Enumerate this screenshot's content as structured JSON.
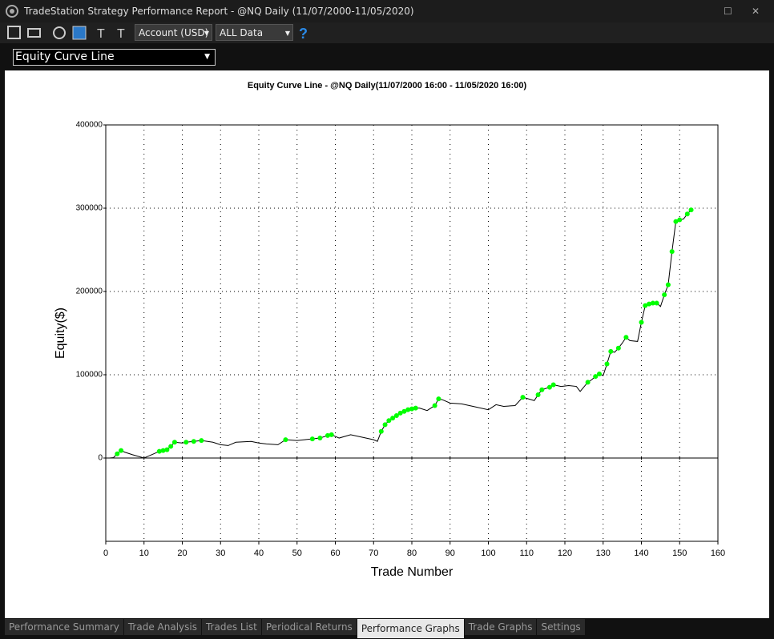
{
  "window": {
    "title": "TradeStation Strategy Performance Report - @NQ Daily (11/07/2000-11/05/2020)"
  },
  "toolbar": {
    "account": "Account (USD)",
    "range": "ALL Data"
  },
  "view_select": "Equity Curve Line",
  "chart_data": {
    "type": "line",
    "title": "Equity Curve Line - @NQ Daily(11/07/2000 16:00 - 11/05/2020 16:00)",
    "x_label": "Trade Number",
    "y_label": "Equity($)",
    "xlim": [
      0,
      160
    ],
    "xticks": [
      0,
      10,
      20,
      30,
      40,
      50,
      60,
      70,
      80,
      90,
      100,
      110,
      120,
      130,
      140,
      150,
      160
    ],
    "ylim": [
      -100000,
      400000
    ],
    "yticks": [
      0,
      100000,
      200000,
      300000,
      400000
    ],
    "grid": true,
    "series": [
      {
        "color": "#000000",
        "x": [
          1,
          2,
          3,
          4,
          5,
          7,
          10,
          11,
          14,
          15,
          16,
          17,
          18,
          20,
          21,
          23,
          25,
          28,
          30,
          32,
          34,
          38,
          40,
          42,
          45,
          47,
          50,
          52,
          54,
          56,
          58,
          59,
          61,
          64,
          67,
          70,
          71,
          72,
          73,
          74,
          75,
          76,
          77,
          78,
          79,
          80,
          81,
          82,
          84,
          86,
          87,
          88,
          90,
          93,
          96,
          100,
          102,
          104,
          107,
          109,
          112,
          113,
          114,
          116,
          117,
          119,
          121,
          123,
          124,
          126,
          127,
          128,
          129,
          130,
          131,
          132,
          133,
          134,
          135,
          136,
          137,
          139,
          140,
          141,
          142,
          143,
          144,
          145,
          146,
          147,
          148,
          149,
          150,
          151,
          152,
          153
        ],
        "values": [
          0,
          500,
          5000,
          9000,
          7000,
          4000,
          0,
          2000,
          8000,
          9000,
          10000,
          14000,
          19000,
          18000,
          19000,
          20000,
          21000,
          19000,
          16000,
          15000,
          19000,
          20000,
          18000,
          17000,
          16000,
          22000,
          21000,
          22000,
          23000,
          24000,
          27000,
          28000,
          24000,
          28000,
          25000,
          22000,
          20000,
          32000,
          40000,
          45000,
          48000,
          51000,
          54000,
          56000,
          58000,
          59000,
          60000,
          60000,
          57000,
          63000,
          71000,
          70000,
          66000,
          65000,
          62000,
          58000,
          64000,
          62000,
          63000,
          73000,
          69000,
          76000,
          82000,
          85000,
          88000,
          86000,
          87000,
          86000,
          80000,
          91000,
          94000,
          98000,
          101000,
          99000,
          113000,
          128000,
          127000,
          132000,
          138000,
          145000,
          141000,
          140000,
          163000,
          183000,
          185000,
          186000,
          186000,
          182000,
          196000,
          208000,
          248000,
          284000,
          286000,
          287000,
          293000,
          298000
        ]
      },
      {
        "color": "#00ff00",
        "marker": "circle",
        "x": [
          3,
          4,
          14,
          15,
          16,
          17,
          18,
          21,
          23,
          25,
          47,
          54,
          56,
          58,
          59,
          72,
          73,
          74,
          75,
          76,
          77,
          78,
          79,
          80,
          81,
          86,
          87,
          109,
          113,
          114,
          116,
          117,
          126,
          128,
          129,
          131,
          132,
          134,
          136,
          140,
          141,
          142,
          143,
          144,
          146,
          147,
          148,
          149,
          150,
          152,
          153
        ],
        "values": [
          5000,
          9000,
          8000,
          9000,
          10000,
          14000,
          19000,
          19000,
          20000,
          21000,
          22000,
          23000,
          24000,
          27000,
          28000,
          32000,
          40000,
          45000,
          48000,
          51000,
          54000,
          56000,
          58000,
          59000,
          60000,
          63000,
          71000,
          73000,
          76000,
          82000,
          85000,
          88000,
          91000,
          98000,
          101000,
          113000,
          128000,
          132000,
          145000,
          163000,
          183000,
          185000,
          186000,
          186000,
          196000,
          208000,
          248000,
          284000,
          286000,
          293000,
          298000
        ]
      }
    ]
  },
  "tabs": [
    "Performance Summary",
    "Trade Analysis",
    "Trades List",
    "Periodical Returns",
    "Performance Graphs",
    "Trade Graphs",
    "Settings"
  ],
  "active_tab": 4
}
